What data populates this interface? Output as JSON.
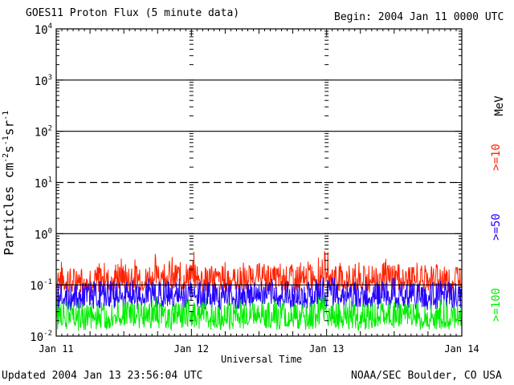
{
  "header": {
    "title": "GOES11 Proton Flux (5 minute data)",
    "begin": "Begin: 2004 Jan 11 0000 UTC"
  },
  "footer": {
    "updated": "Updated 2004 Jan 13 23:56:04 UTC",
    "source": "NOAA/SEC Boulder, CO USA"
  },
  "right_labels": {
    "unit": "MeV",
    "ge10": ">=10",
    "ge50": ">=50",
    "ge100": ">=100"
  },
  "chart_data": {
    "type": "line",
    "title": "GOES11 Proton Flux (5 minute data)",
    "xlabel": "Universal Time",
    "ylabel": "Particles cm⁻²s⁻¹sr⁻¹",
    "yscale": "log",
    "ylim": [
      0.01,
      10000
    ],
    "xlim": [
      0,
      3
    ],
    "x_unit": "days since 2004 Jan 11 0000 UTC",
    "x_ticks": [
      {
        "x": 0,
        "label": "Jan 11"
      },
      {
        "x": 1,
        "label": "Jan 12"
      },
      {
        "x": 2,
        "label": "Jan 13"
      },
      {
        "x": 3,
        "label": "Jan 14"
      }
    ],
    "y_ticks": [
      {
        "v": 0.01,
        "base": "10",
        "exp": "-2"
      },
      {
        "v": 0.1,
        "base": "10",
        "exp": "-1"
      },
      {
        "v": 1,
        "base": "10",
        "exp": "0"
      },
      {
        "v": 10,
        "base": "10",
        "exp": "1"
      },
      {
        "v": 100,
        "base": "10",
        "exp": "2"
      },
      {
        "v": 1000,
        "base": "10",
        "exp": "3"
      },
      {
        "v": 10000,
        "base": "10",
        "exp": "4"
      }
    ],
    "threshold_lines": [
      {
        "value": 1000,
        "style": "solid"
      },
      {
        "value": 100,
        "style": "solid"
      },
      {
        "value": 10,
        "style": "dashed"
      },
      {
        "value": 1,
        "style": "solid"
      },
      {
        "value": 0.1,
        "style": "solid"
      }
    ],
    "day_boundaries": [
      1,
      2
    ],
    "grid": false,
    "series": [
      {
        "name": ">=10 MeV",
        "color": "#ff2200",
        "x": [
          0,
          0.125,
          0.25,
          0.375,
          0.5,
          0.625,
          0.75,
          0.875,
          1,
          1.125,
          1.25,
          1.375,
          1.5,
          1.625,
          1.75,
          1.875,
          2,
          2.125,
          2.25,
          2.375,
          2.5,
          2.625,
          2.75,
          2.875,
          3
        ],
        "values": [
          0.13,
          0.11,
          0.12,
          0.13,
          0.14,
          0.12,
          0.15,
          0.13,
          0.14,
          0.12,
          0.13,
          0.12,
          0.14,
          0.13,
          0.12,
          0.13,
          0.15,
          0.13,
          0.12,
          0.13,
          0.14,
          0.12,
          0.13,
          0.12,
          0.13
        ],
        "peaks": [
          0.3,
          0.25,
          0.28,
          0.32,
          0.38,
          0.3,
          0.45,
          0.35,
          0.48,
          0.25,
          0.3,
          0.28,
          0.3,
          0.27,
          0.3,
          0.32,
          0.48,
          0.3,
          0.28,
          0.3,
          0.35,
          0.28,
          0.3,
          0.22,
          0.25
        ]
      },
      {
        "name": ">=50 MeV",
        "color": "#2200ff",
        "x": [
          0,
          0.125,
          0.25,
          0.375,
          0.5,
          0.625,
          0.75,
          0.875,
          1,
          1.125,
          1.25,
          1.375,
          1.5,
          1.625,
          1.75,
          1.875,
          2,
          2.125,
          2.25,
          2.375,
          2.5,
          2.625,
          2.75,
          2.875,
          3
        ],
        "values": [
          0.06,
          0.055,
          0.06,
          0.065,
          0.06,
          0.058,
          0.062,
          0.06,
          0.065,
          0.06,
          0.058,
          0.06,
          0.062,
          0.06,
          0.058,
          0.06,
          0.065,
          0.06,
          0.058,
          0.06,
          0.062,
          0.06,
          0.058,
          0.06,
          0.06
        ],
        "peaks": [
          0.12,
          0.1,
          0.12,
          0.13,
          0.14,
          0.12,
          0.15,
          0.13,
          0.16,
          0.12,
          0.13,
          0.12,
          0.14,
          0.13,
          0.12,
          0.13,
          0.16,
          0.13,
          0.12,
          0.13,
          0.14,
          0.12,
          0.13,
          0.12,
          0.12
        ]
      },
      {
        "name": ">=100 MeV",
        "color": "#00ee00",
        "x": [
          0,
          0.125,
          0.25,
          0.375,
          0.5,
          0.625,
          0.75,
          0.875,
          1,
          1.125,
          1.25,
          1.375,
          1.5,
          1.625,
          1.75,
          1.875,
          2,
          2.125,
          2.25,
          2.375,
          2.5,
          2.625,
          2.75,
          2.875,
          3
        ],
        "values": [
          0.025,
          0.022,
          0.024,
          0.025,
          0.026,
          0.024,
          0.025,
          0.024,
          0.026,
          0.024,
          0.023,
          0.024,
          0.025,
          0.024,
          0.023,
          0.024,
          0.026,
          0.024,
          0.023,
          0.024,
          0.025,
          0.024,
          0.023,
          0.024,
          0.024
        ],
        "peaks": [
          0.06,
          0.05,
          0.055,
          0.06,
          0.065,
          0.055,
          0.06,
          0.058,
          0.07,
          0.055,
          0.05,
          0.055,
          0.06,
          0.055,
          0.05,
          0.055,
          0.07,
          0.055,
          0.05,
          0.055,
          0.06,
          0.055,
          0.05,
          0.055,
          0.05
        ]
      }
    ]
  }
}
